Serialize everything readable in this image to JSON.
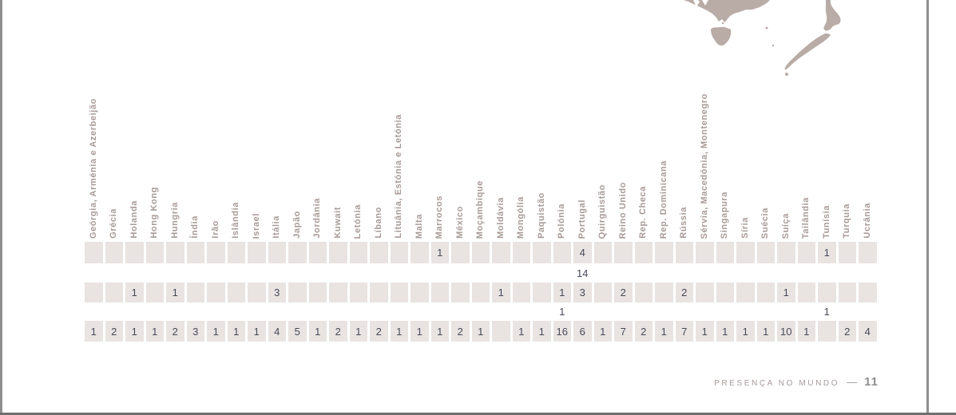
{
  "footer": {
    "label": "PRESENÇA NO MUNDO",
    "separator": "—",
    "page_number": "11"
  },
  "map": {
    "description": "world-map-fragment-bottom-right",
    "visible_regions": [
      "Austrália (sul) e Tasmânia",
      "Nova Zelândia"
    ],
    "color": "#b9aba6"
  },
  "colors": {
    "cell_band": "#e9e3e2",
    "header_text": "#a89a97",
    "number_text": "#474a59",
    "frame_line": "#8f8f8f"
  },
  "chart_data": {
    "type": "table",
    "columns": [
      "Geórgia, Arménia e Azerbeijão",
      "Grécia",
      "Holanda",
      "Hong Kong",
      "Hungria",
      "Índia",
      "Irão",
      "Islândia",
      "Israel",
      "Itália",
      "Japão",
      "Jordânia",
      "Kuwait",
      "Letónia",
      "Líbano",
      "Lituânia, Estónia e Letónia",
      "Malta",
      "Marrocos",
      "México",
      "Moçambique",
      "Moldávia",
      "Mongólia",
      "Paquistão",
      "Polónia",
      "Portugal",
      "Quirguistão",
      "Reino Unido",
      "Rep. Checa",
      "Rep. Dominicana",
      "Rússia",
      "Sérvia, Macedónia, Montenegro",
      "Singapura",
      "Síria",
      "Suécia",
      "Suíça",
      "Tailândia",
      "Tunísia",
      "Turquia",
      "Ucrânia"
    ],
    "rows": [
      {
        "shaded": true,
        "values": [
          "",
          "",
          "",
          "",
          "",
          "",
          "",
          "",
          "",
          "",
          "",
          "",
          "",
          "",
          "",
          "",
          "",
          "1",
          "",
          "",
          "",
          "",
          "",
          "",
          "4",
          "",
          "",
          "",
          "",
          "",
          "",
          "",
          "",
          "",
          "",
          "",
          "1",
          "",
          ""
        ]
      },
      {
        "shaded": false,
        "values": [
          "",
          "",
          "",
          "",
          "",
          "",
          "",
          "",
          "",
          "",
          "",
          "",
          "",
          "",
          "",
          "",
          "",
          "",
          "",
          "",
          "",
          "",
          "",
          "",
          "14",
          "",
          "",
          "",
          "",
          "",
          "",
          "",
          "",
          "",
          "",
          "",
          "",
          "",
          ""
        ]
      },
      {
        "shaded": true,
        "values": [
          "",
          "",
          "1",
          "",
          "1",
          "",
          "",
          "",
          "",
          "3",
          "",
          "",
          "",
          "",
          "",
          "",
          "",
          "",
          "",
          "",
          "1",
          "",
          "",
          "1",
          "3",
          "",
          "2",
          "",
          "",
          "2",
          "",
          "",
          "",
          "",
          "1",
          "",
          "",
          "",
          ""
        ]
      },
      {
        "shaded": false,
        "values": [
          "",
          "",
          "",
          "",
          "",
          "",
          "",
          "",
          "",
          "",
          "",
          "",
          "",
          "",
          "",
          "",
          "",
          "",
          "",
          "",
          "",
          "",
          "",
          "1",
          "",
          "",
          "",
          "",
          "",
          "",
          "",
          "",
          "",
          "",
          "",
          "",
          "1",
          "",
          ""
        ]
      },
      {
        "shaded": true,
        "values": [
          "1",
          "2",
          "1",
          "1",
          "2",
          "3",
          "1",
          "1",
          "1",
          "4",
          "5",
          "1",
          "2",
          "1",
          "2",
          "1",
          "1",
          "1",
          "2",
          "1",
          "",
          "1",
          "1",
          "16",
          "6",
          "1",
          "7",
          "2",
          "1",
          "7",
          "1",
          "1",
          "1",
          "1",
          "10",
          "1",
          "",
          "2",
          "4"
        ]
      }
    ]
  }
}
